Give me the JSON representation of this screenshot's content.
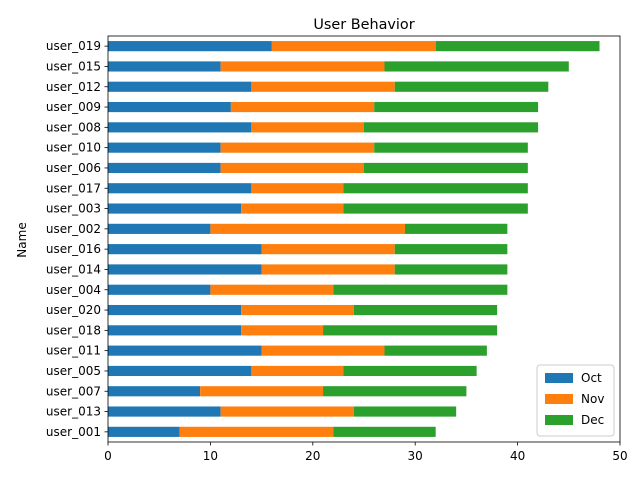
{
  "chart_data": {
    "type": "bar",
    "orientation": "horizontal",
    "stacked": true,
    "title": "User Behavior",
    "xlabel": "",
    "ylabel": "Name",
    "xlim": [
      0,
      50
    ],
    "x_ticks": [
      0,
      10,
      20,
      30,
      40,
      50
    ],
    "grid": false,
    "legend_position": "lower-right",
    "categories": [
      "user_019",
      "user_015",
      "user_012",
      "user_009",
      "user_008",
      "user_010",
      "user_006",
      "user_017",
      "user_003",
      "user_002",
      "user_016",
      "user_014",
      "user_004",
      "user_020",
      "user_018",
      "user_011",
      "user_005",
      "user_007",
      "user_013",
      "user_001"
    ],
    "series": [
      {
        "name": "Oct",
        "color": "#1f77b4",
        "values": [
          16,
          11,
          14,
          12,
          14,
          11,
          11,
          14,
          13,
          10,
          15,
          15,
          10,
          13,
          13,
          15,
          14,
          9,
          11,
          7
        ]
      },
      {
        "name": "Nov",
        "color": "#ff7f0e",
        "values": [
          16,
          16,
          14,
          14,
          11,
          15,
          14,
          9,
          10,
          19,
          13,
          13,
          12,
          11,
          8,
          12,
          9,
          12,
          13,
          15
        ]
      },
      {
        "name": "Dec",
        "color": "#2ca02c",
        "values": [
          16,
          18,
          15,
          16,
          17,
          15,
          16,
          18,
          18,
          10,
          11,
          11,
          17,
          14,
          17,
          10,
          13,
          14,
          10,
          10
        ]
      }
    ]
  }
}
